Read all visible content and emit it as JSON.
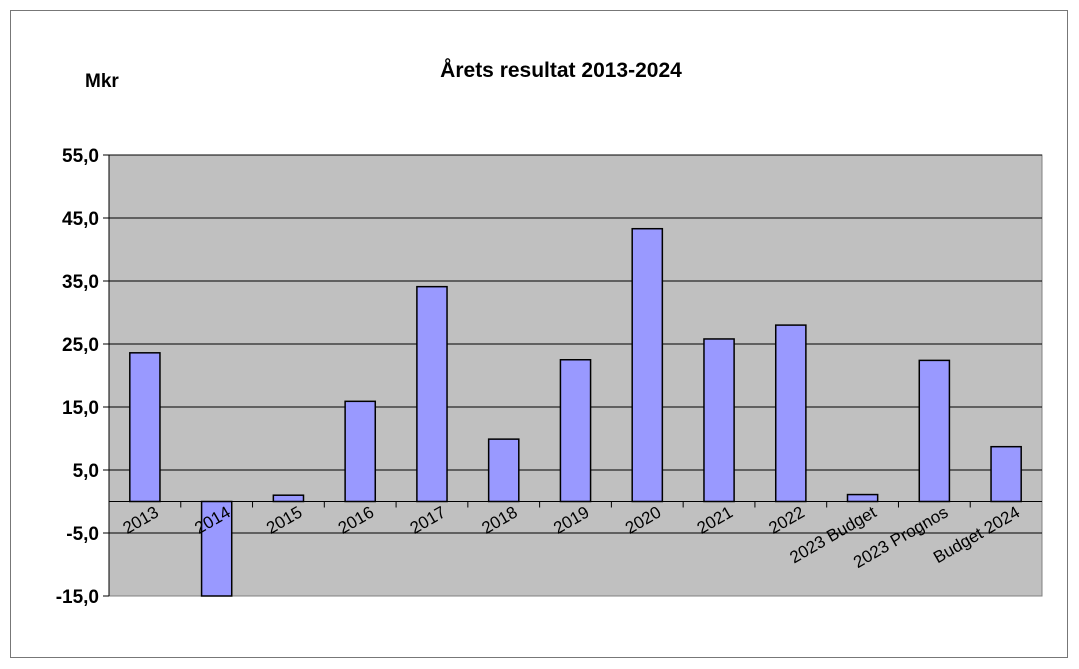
{
  "chart_data": {
    "type": "bar",
    "title": "Årets resultat  2013-2024",
    "ylabel": "Mkr",
    "xlabel": "",
    "categories": [
      "2013",
      "2014",
      "2015",
      "2016",
      "2017",
      "2018",
      "2019",
      "2020",
      "2021",
      "2022",
      "2023 Budget",
      "2023 Prognos",
      "Budget 2024"
    ],
    "values": [
      23.6,
      -15.0,
      1.0,
      15.9,
      34.1,
      9.9,
      22.5,
      43.3,
      25.8,
      28.0,
      1.1,
      22.4,
      8.7
    ],
    "ylim": [
      -15.0,
      55.0
    ],
    "yticks": [
      "-15,0",
      "-5,0",
      "5,0",
      "15,0",
      "25,0",
      "35,0",
      "45,0",
      "55,0"
    ],
    "ytick_values": [
      -15,
      -5,
      5,
      15,
      25,
      35,
      45,
      55
    ],
    "grid": true,
    "legend": "none",
    "colors": {
      "bar_fill": "#9999ff",
      "bar_stroke": "#000000",
      "plot_background": "#c0c0c0",
      "gridline": "#000000"
    }
  }
}
